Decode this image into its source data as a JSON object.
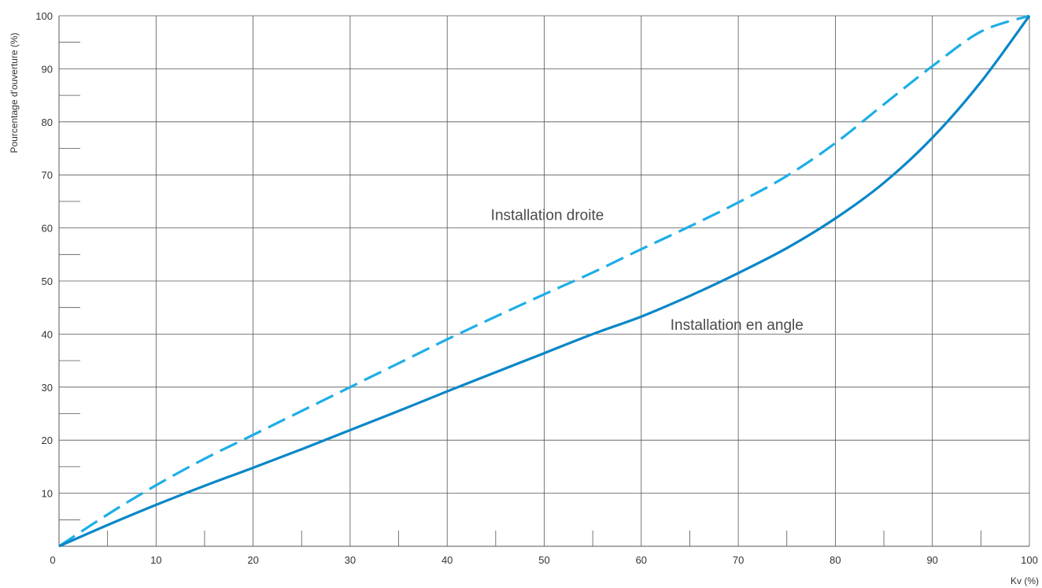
{
  "chart_data": {
    "type": "line",
    "xlabel": "Kv (%)",
    "ylabel": "Pourcentage d'ouverture (%)",
    "xlim": [
      0,
      100
    ],
    "ylim": [
      0,
      100
    ],
    "x_ticks": [
      0,
      10,
      20,
      30,
      40,
      50,
      60,
      70,
      80,
      90,
      100
    ],
    "y_ticks": [
      10,
      20,
      30,
      40,
      50,
      60,
      70,
      80,
      90,
      100
    ],
    "grid": true,
    "series": [
      {
        "name": "Installation droite",
        "color": "#1eaee6",
        "dash": "dashed",
        "x": [
          0,
          5,
          10,
          15,
          20,
          25,
          30,
          35,
          40,
          45,
          50,
          55,
          60,
          65,
          70,
          75,
          80,
          85,
          90,
          95,
          100
        ],
        "y": [
          0,
          6,
          11.5,
          16.5,
          21,
          25.5,
          30,
          34.5,
          39,
          43.3,
          47.5,
          51.6,
          56,
          60.3,
          64.8,
          69.8,
          76,
          83.3,
          90.5,
          97,
          100
        ]
      },
      {
        "name": "Installation en angle",
        "color": "#0a87c8",
        "dash": "solid",
        "x": [
          0,
          5,
          10,
          15,
          20,
          25,
          30,
          35,
          40,
          45,
          50,
          55,
          60,
          65,
          70,
          75,
          80,
          85,
          90,
          95,
          100
        ],
        "y": [
          0,
          4,
          7.8,
          11.4,
          14.8,
          18.3,
          21.9,
          25.5,
          29.2,
          32.8,
          36.4,
          40,
          43.3,
          47.2,
          51.5,
          56.2,
          61.8,
          68.5,
          77,
          87.5,
          100
        ]
      }
    ],
    "annotations": [
      {
        "text": "Installation droite",
        "x": 44.5,
        "y": 61.5
      },
      {
        "text": "Installation en angle",
        "x": 63,
        "y": 40.8
      }
    ]
  }
}
